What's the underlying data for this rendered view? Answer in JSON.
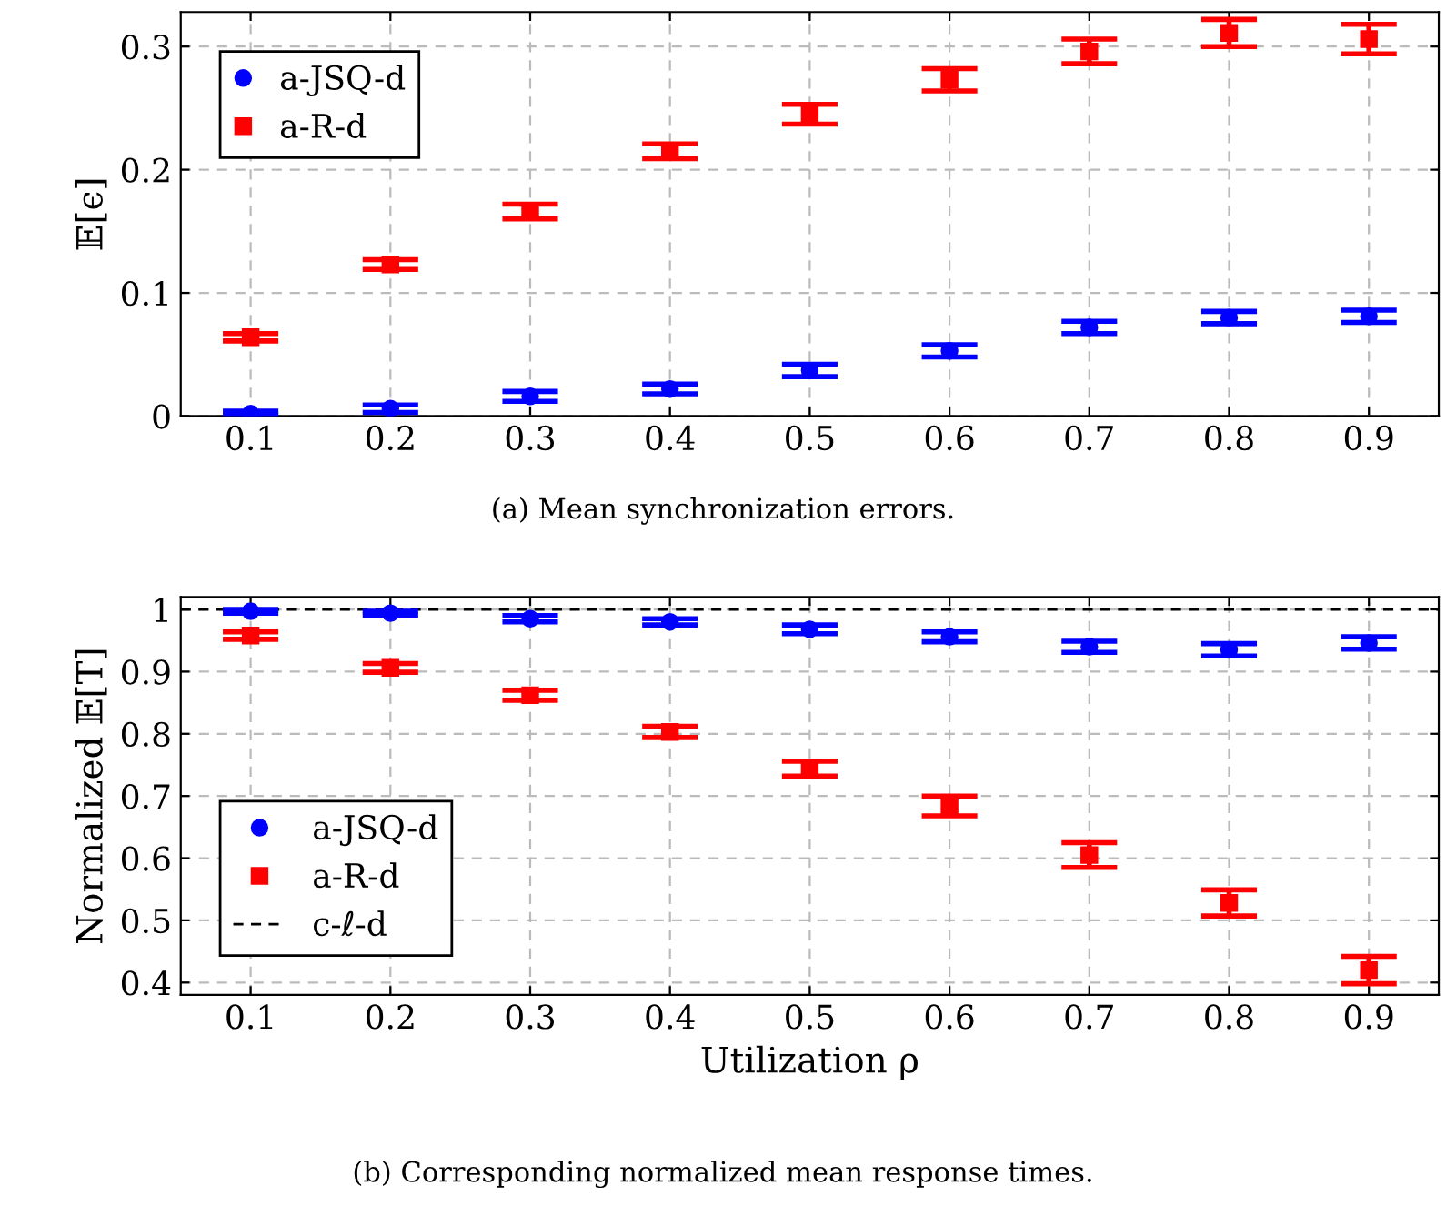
{
  "chart_data": [
    {
      "type": "scatter",
      "ylabel": "𝔼[ϵ]",
      "x": [
        0.1,
        0.2,
        0.3,
        0.4,
        0.5,
        0.6,
        0.7,
        0.8,
        0.9
      ],
      "xlim": [
        0.05,
        0.95
      ],
      "xticks": [
        0.1,
        0.2,
        0.3,
        0.4,
        0.5,
        0.6,
        0.7,
        0.8,
        0.9
      ],
      "ylim": [
        0,
        0.328
      ],
      "yticks": [
        0,
        0.1,
        0.2,
        0.3
      ],
      "grid": true,
      "legend": "top left",
      "annotations": [
        "(a) Mean synchronization errors."
      ],
      "series": [
        {
          "name": "a-JSQ-d",
          "color": "#0000ff",
          "marker": "circle",
          "values": [
            0.002,
            0.006,
            0.016,
            0.022,
            0.037,
            0.053,
            0.072,
            0.08,
            0.081
          ],
          "errors": [
            [
              0.001,
              0.002
            ],
            0.003,
            0.004,
            0.004,
            0.005,
            0.005,
            0.005,
            0.005,
            0.005
          ]
        },
        {
          "name": "a-R-d",
          "color": "#ff0000",
          "marker": "square",
          "values": [
            0.064,
            0.123,
            0.166,
            0.215,
            0.245,
            0.273,
            0.296,
            0.311,
            0.306
          ],
          "errors": [
            0.003,
            0.004,
            0.006,
            0.006,
            0.008,
            0.009,
            0.01,
            0.011,
            0.012
          ]
        }
      ]
    },
    {
      "type": "scatter",
      "xlabel": "Utilization ρ",
      "ylabel": "Normalized 𝔼[T]",
      "x": [
        0.1,
        0.2,
        0.3,
        0.4,
        0.5,
        0.6,
        0.7,
        0.8,
        0.9
      ],
      "xlim": [
        0.05,
        0.95
      ],
      "xticks": [
        0.1,
        0.2,
        0.3,
        0.4,
        0.5,
        0.6,
        0.7,
        0.8,
        0.9
      ],
      "ylim": [
        0.38,
        1.02
      ],
      "yticks": [
        0.4,
        0.5,
        0.6,
        0.7,
        0.8,
        0.9,
        1
      ],
      "grid": true,
      "legend": "bottom left",
      "annotations": [
        "(b) Corresponding normalized mean response times."
      ],
      "ref_lines": [
        {
          "axis": "y",
          "value": 1,
          "label": "c-ℓ-d",
          "color": "#000000",
          "line_style": "dashed"
        }
      ],
      "series": [
        {
          "name": "a-JSQ-d",
          "color": "#0000ff",
          "marker": "circle",
          "values": [
            0.997,
            0.994,
            0.985,
            0.98,
            0.968,
            0.956,
            0.94,
            0.935,
            0.946
          ],
          "errors": [
            0.003,
            0.003,
            0.005,
            0.005,
            0.007,
            0.008,
            0.009,
            0.01,
            0.01
          ]
        },
        {
          "name": "a-R-d",
          "color": "#ff0000",
          "marker": "square",
          "values": [
            0.958,
            0.906,
            0.862,
            0.803,
            0.744,
            0.684,
            0.605,
            0.528,
            0.42
          ],
          "errors": [
            0.006,
            0.007,
            0.008,
            0.009,
            0.012,
            0.016,
            0.02,
            0.021,
            0.022
          ]
        }
      ]
    }
  ]
}
